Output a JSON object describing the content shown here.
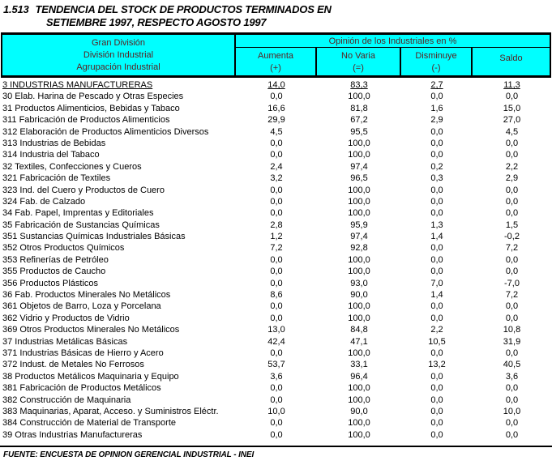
{
  "title": {
    "index": "1.513",
    "line1": "TENDENCIA DEL STOCK DE PRODUCTOS TERMINADOS EN",
    "line2": "SETIEMBRE 1997, RESPECTO AGOSTO 1997"
  },
  "colors": {
    "header_bg": "#00FFFF",
    "header_text": "#5A1F1F",
    "body_text": "#000000"
  },
  "table": {
    "left_header_lines": [
      "Gran División",
      "División Industrial",
      "Agrupación Industrial"
    ],
    "group_header": "Opinión de los Industriales en %",
    "columns": [
      {
        "label": "Aumenta",
        "sign": "(+)"
      },
      {
        "label": "No Varia",
        "sign": "(=)"
      },
      {
        "label": "Disminuye",
        "sign": "(-)"
      },
      {
        "label": "Saldo",
        "sign": ""
      }
    ],
    "rows": [
      {
        "label": "3 INDUSTRIAS MANUFACTURERAS",
        "values": [
          "14,0",
          "83,3",
          "2,7",
          "11,3"
        ],
        "underline": true
      },
      {
        "label": "30 Elab. Harina de Pescado y Otras Especies",
        "values": [
          "0,0",
          "100,0",
          "0,0",
          "0,0"
        ],
        "underline": false
      },
      {
        "label": "31 Productos Alimenticios, Bebidas y Tabaco",
        "values": [
          "16,6",
          "81,8",
          "1,6",
          "15,0"
        ],
        "underline": false
      },
      {
        "label": "311 Fabricación de Productos Alimenticios",
        "values": [
          "29,9",
          "67,2",
          "2,9",
          "27,0"
        ],
        "underline": false
      },
      {
        "label": "312 Elaboración de Productos Alimenticios Diversos",
        "values": [
          "4,5",
          "95,5",
          "0,0",
          "4,5"
        ],
        "underline": false
      },
      {
        "label": "313 Industrias de Bebidas",
        "values": [
          "0,0",
          "100,0",
          "0,0",
          "0,0"
        ],
        "underline": false
      },
      {
        "label": "314 Industria del Tabaco",
        "values": [
          "0,0",
          "100,0",
          "0,0",
          "0,0"
        ],
        "underline": false
      },
      {
        "label": "32 Textiles, Confecciones y Cueros",
        "values": [
          "2,4",
          "97,4",
          "0,2",
          "2,2"
        ],
        "underline": false
      },
      {
        "label": "321 Fabricación de Textiles",
        "values": [
          "3,2",
          "96,5",
          "0,3",
          "2,9"
        ],
        "underline": false
      },
      {
        "label": "323 Ind. del Cuero y Productos de Cuero",
        "values": [
          "0,0",
          "100,0",
          "0,0",
          "0,0"
        ],
        "underline": false
      },
      {
        "label": "324 Fab. de Calzado",
        "values": [
          "0,0",
          "100,0",
          "0,0",
          "0,0"
        ],
        "underline": false
      },
      {
        "label": "34 Fab. Papel, Imprentas y Editoriales",
        "values": [
          "0,0",
          "100,0",
          "0,0",
          "0,0"
        ],
        "underline": false
      },
      {
        "label": "35 Fabricación de Sustancias Químicas",
        "values": [
          "2,8",
          "95,9",
          "1,3",
          "1,5"
        ],
        "underline": false
      },
      {
        "label": "351 Sustancias Químicas Industriales Básicas",
        "values": [
          "1,2",
          "97,4",
          "1,4",
          "-0,2"
        ],
        "underline": false
      },
      {
        "label": "352 Otros Productos Químicos",
        "values": [
          "7,2",
          "92,8",
          "0,0",
          "7,2"
        ],
        "underline": false
      },
      {
        "label": "353 Refinerías de Petróleo",
        "values": [
          "0,0",
          "100,0",
          "0,0",
          "0,0"
        ],
        "underline": false
      },
      {
        "label": "355 Productos de Caucho",
        "values": [
          "0,0",
          "100,0",
          "0,0",
          "0,0"
        ],
        "underline": false
      },
      {
        "label": "356 Productos Plásticos",
        "values": [
          "0,0",
          "93,0",
          "7,0",
          "-7,0"
        ],
        "underline": false
      },
      {
        "label": "36 Fab. Productos Minerales No Metálicos",
        "values": [
          "8,6",
          "90,0",
          "1,4",
          "7,2"
        ],
        "underline": false
      },
      {
        "label": "361 Objetos de Barro, Loza y Porcelana",
        "values": [
          "0,0",
          "100,0",
          "0,0",
          "0,0"
        ],
        "underline": false
      },
      {
        "label": "362 Vidrio y Productos de Vidrio",
        "values": [
          "0,0",
          "100,0",
          "0,0",
          "0,0"
        ],
        "underline": false
      },
      {
        "label": "369 Otros Productos Minerales No Metálicos",
        "values": [
          "13,0",
          "84,8",
          "2,2",
          "10,8"
        ],
        "underline": false
      },
      {
        "label": "37 Industrias Metálicas Básicas",
        "values": [
          "42,4",
          "47,1",
          "10,5",
          "31,9"
        ],
        "underline": false
      },
      {
        "label": "371 Industrias Básicas de Hierro y Acero",
        "values": [
          "0,0",
          "100,0",
          "0,0",
          "0,0"
        ],
        "underline": false
      },
      {
        "label": "372 Indust. de Metales No Ferrosos",
        "values": [
          "53,7",
          "33,1",
          "13,2",
          "40,5"
        ],
        "underline": false
      },
      {
        "label": "38 Productos Metálicos Maquinaria y Equipo",
        "values": [
          "3,6",
          "96,4",
          "0,0",
          "3,6"
        ],
        "underline": false
      },
      {
        "label": "381 Fabricación de Productos Metálicos",
        "values": [
          "0,0",
          "100,0",
          "0,0",
          "0,0"
        ],
        "underline": false
      },
      {
        "label": "382 Construcción de Maquinaria",
        "values": [
          "0,0",
          "100,0",
          "0,0",
          "0,0"
        ],
        "underline": false
      },
      {
        "label": "383 Maquinarias, Aparat, Acceso. y Suministros Eléctr.",
        "values": [
          "10,0",
          "90,0",
          "0,0",
          "10,0"
        ],
        "underline": false
      },
      {
        "label": "384 Construcción de Material de Transporte",
        "values": [
          "0,0",
          "100,0",
          "0,0",
          "0,0"
        ],
        "underline": false
      },
      {
        "label": "39 Otras Industrias Manufactureras",
        "values": [
          "0,0",
          "100,0",
          "0,0",
          "0,0"
        ],
        "underline": false
      }
    ]
  },
  "footer": "FUENTE: ENCUESTA DE OPINION GERENCIAL INDUSTRIAL -  INEI"
}
